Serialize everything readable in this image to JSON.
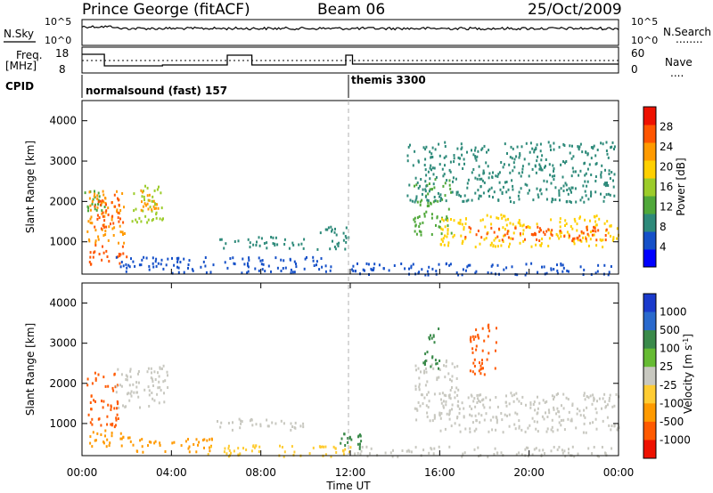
{
  "header": {
    "station": "Prince George (fitACF)",
    "beam": "Beam 06",
    "date": "25/Oct/2009"
  },
  "nsky_panel": {
    "left_label": "N.Sky",
    "right_label": "N.Search",
    "left_ticks": [
      "10^5",
      "10^0"
    ],
    "right_ticks": [
      "10^5",
      "10^0"
    ],
    "legend_marker": "........"
  },
  "freq_panel": {
    "left_label_1": "Freq.",
    "left_label_2": "[MHz]",
    "left_ticks": [
      "18",
      "8"
    ],
    "right_label": "Nave",
    "right_ticks": [
      "60",
      "0"
    ],
    "legend_marker": "...."
  },
  "cpid_panel": {
    "label": "CPID",
    "programs": [
      {
        "name": "normalsound (fast) 157",
        "start_hour": 0
      },
      {
        "name": "themis 3300",
        "start_hour": 12
      }
    ]
  },
  "time_axis": {
    "label": "Time UT",
    "ticks": [
      "00:00",
      "04:00",
      "08:00",
      "12:00",
      "16:00",
      "20:00",
      "00:00"
    ]
  },
  "chart_data": [
    {
      "type": "heatmap",
      "title": "",
      "xlabel": "Time UT",
      "ylabel": "Slant Range [km]",
      "x_unit": "hour UT",
      "xlim": [
        0,
        24
      ],
      "ylim": [
        200,
        4500
      ],
      "y_ticks": [
        "1000",
        "2000",
        "3000",
        "4000"
      ],
      "colorbar": {
        "label": "Power [dB]",
        "ticks": [
          "4",
          "8",
          "12",
          "16",
          "20",
          "24",
          "28"
        ],
        "range": [
          0,
          32
        ],
        "colors": [
          "#0000ff",
          "#1550c8",
          "#2e8a7a",
          "#50a83a",
          "#9ccc2a",
          "#ffd000",
          "#ff9a00",
          "#ff5500",
          "#ee1100"
        ]
      },
      "regions": [
        {
          "t0": 0.1,
          "t1": 1.0,
          "r0": 1800,
          "r1": 2300,
          "value": 14
        },
        {
          "t0": 0.2,
          "t1": 1.9,
          "r0": 950,
          "r1": 2300,
          "value": 22
        },
        {
          "t0": 0.3,
          "t1": 2.0,
          "r0": 450,
          "r1": 950,
          "value": 26
        },
        {
          "t0": 0.5,
          "t1": 1.8,
          "r0": 1300,
          "r1": 2200,
          "value": 25
        },
        {
          "t0": 2.2,
          "t1": 3.6,
          "r0": 1500,
          "r1": 2500,
          "value": 16
        },
        {
          "t0": 2.6,
          "t1": 3.4,
          "r0": 1800,
          "r1": 2300,
          "value": 24
        },
        {
          "t0": 1.5,
          "t1": 11.5,
          "r0": 250,
          "r1": 650,
          "value": 5
        },
        {
          "t0": 6.0,
          "t1": 10.0,
          "r0": 850,
          "r1": 1150,
          "value": 9
        },
        {
          "t0": 10.5,
          "t1": 12.0,
          "r0": 800,
          "r1": 1400,
          "value": 8
        },
        {
          "t0": 12.0,
          "t1": 24.0,
          "r0": 200,
          "r1": 500,
          "value": 4
        },
        {
          "t0": 14.8,
          "t1": 16.5,
          "r0": 1200,
          "r1": 2600,
          "value": 14
        },
        {
          "t0": 16.0,
          "t1": 24.0,
          "r0": 900,
          "r1": 1700,
          "value": 20
        },
        {
          "t0": 17.0,
          "t1": 23.8,
          "r0": 1050,
          "r1": 1400,
          "value": 27
        },
        {
          "t0": 14.5,
          "t1": 23.8,
          "r0": 2000,
          "r1": 3500,
          "value": 9
        }
      ]
    },
    {
      "type": "heatmap",
      "title": "",
      "xlabel": "Time UT",
      "ylabel": "Slant Range [km]",
      "x_unit": "hour UT",
      "xlim": [
        0,
        24
      ],
      "ylim": [
        200,
        4500
      ],
      "y_ticks": [
        "1000",
        "2000",
        "3000",
        "4000"
      ],
      "colorbar": {
        "label": "Velocity [m s^-1]",
        "ticks": [
          "1000",
          "500",
          "100",
          "25",
          "-25",
          "-100",
          "-500",
          "-1000"
        ],
        "colors": [
          "#1a3acc",
          "#2a6acd",
          "#3a8a4a",
          "#66bb33",
          "#c8c8c0",
          "#ffcc33",
          "#ff9a00",
          "#ff5a00",
          "#ee1100"
        ]
      },
      "regions": [
        {
          "t0": 0.2,
          "t1": 1.6,
          "r0": 950,
          "r1": 2300,
          "value": -600
        },
        {
          "t0": 1.5,
          "t1": 2.5,
          "r0": 1400,
          "r1": 2400,
          "value": 0
        },
        {
          "t0": 2.4,
          "t1": 3.8,
          "r0": 1400,
          "r1": 2500,
          "value": 0
        },
        {
          "t0": 0.3,
          "t1": 2.2,
          "r0": 450,
          "r1": 950,
          "value": -250
        },
        {
          "t0": 2.2,
          "t1": 6.0,
          "r0": 300,
          "r1": 650,
          "value": -150
        },
        {
          "t0": 5.5,
          "t1": 12.0,
          "r0": 200,
          "r1": 500,
          "value": -50
        },
        {
          "t0": 6.0,
          "t1": 10.0,
          "r0": 850,
          "r1": 1150,
          "value": 0
        },
        {
          "t0": 11.5,
          "t1": 12.5,
          "r0": 400,
          "r1": 800,
          "value": 100
        },
        {
          "t0": 14.8,
          "t1": 16.8,
          "r0": 1100,
          "r1": 2600,
          "value": 0
        },
        {
          "t0": 16.0,
          "t1": 24.0,
          "r0": 800,
          "r1": 1800,
          "value": 0
        },
        {
          "t0": 12.0,
          "t1": 24.0,
          "r0": 200,
          "r1": 450,
          "value": -25
        },
        {
          "t0": 17.3,
          "t1": 18.5,
          "r0": 2200,
          "r1": 3500,
          "value": -500
        },
        {
          "t0": 15.2,
          "t1": 16.0,
          "r0": 2400,
          "r1": 3400,
          "value": 250
        }
      ]
    }
  ]
}
